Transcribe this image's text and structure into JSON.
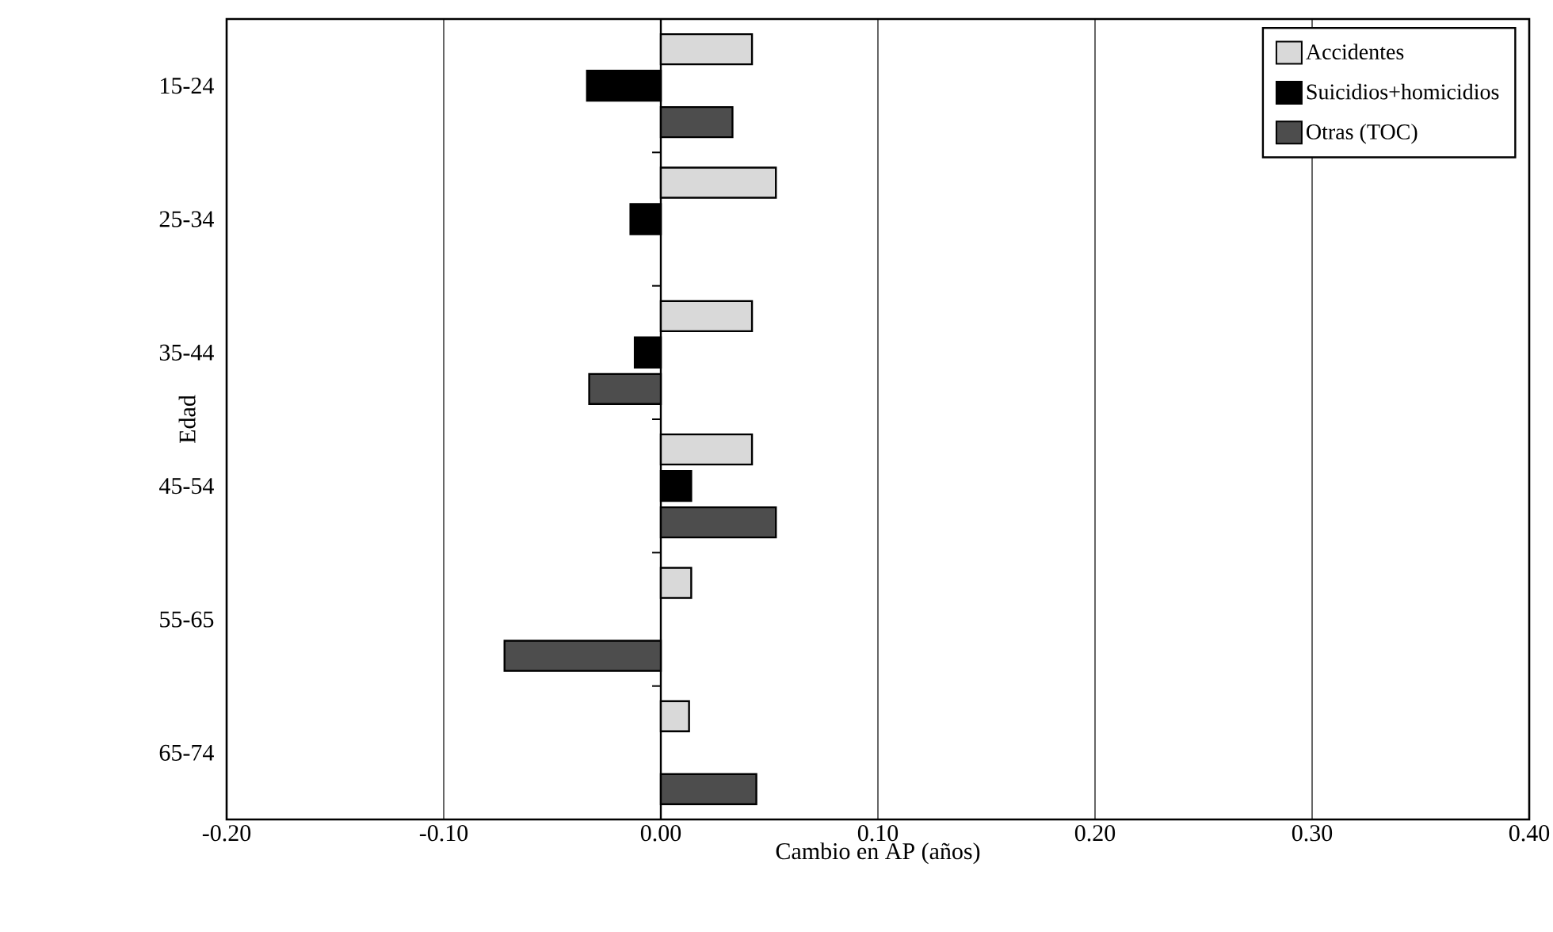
{
  "chart_data": {
    "type": "bar",
    "orientation": "horizontal",
    "xlabel": "Cambio en AP (años)",
    "ylabel": "Edad",
    "categories": [
      "15-24",
      "25-34",
      "35-44",
      "45-54",
      "55-65",
      "65-74"
    ],
    "series": [
      {
        "name": "Accidentes",
        "color": "#d9d9d9",
        "values": [
          0.042,
          0.053,
          0.042,
          0.042,
          0.014,
          0.013
        ]
      },
      {
        "name": "Suicidios+homicidios",
        "color": "#000000",
        "values": [
          -0.034,
          -0.014,
          -0.012,
          0.014,
          null,
          null
        ]
      },
      {
        "name": "Otras (TOC)",
        "color": "#4d4d4d",
        "values": [
          0.033,
          null,
          -0.033,
          0.053,
          -0.072,
          0.044
        ]
      }
    ],
    "xlim": [
      -0.2,
      0.4
    ],
    "xticks": [
      {
        "value": -0.2,
        "label": "-0.20"
      },
      {
        "value": -0.1,
        "label": "-0.10"
      },
      {
        "value": 0,
        "label": "0.00"
      },
      {
        "value": 0.1,
        "label": "0.10"
      },
      {
        "value": 0.2,
        "label": "0.20"
      },
      {
        "value": 0.3,
        "label": "0.30"
      },
      {
        "value": 0.4,
        "label": "0.40"
      }
    ],
    "grid": "x",
    "legend": "top right"
  }
}
